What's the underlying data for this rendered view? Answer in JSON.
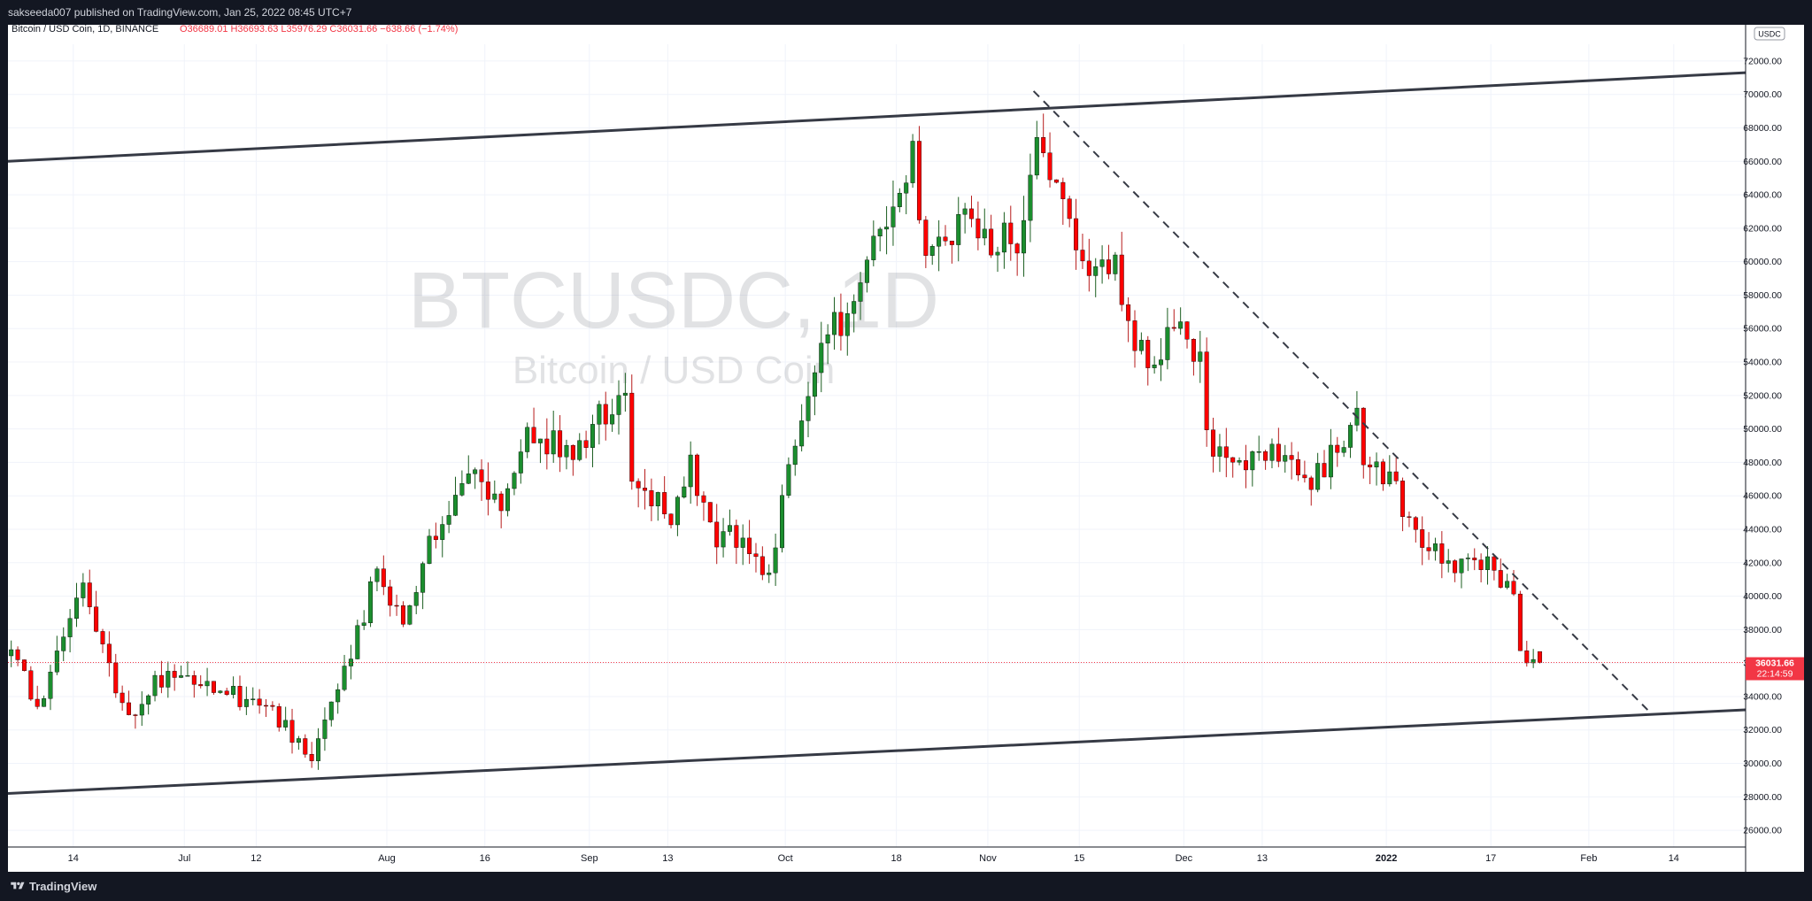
{
  "header": {
    "published": "sakseeda007 published on TradingView.com, Jan 25, 2022 08:45 UTC+7"
  },
  "legend": {
    "symbol": "Bitcoin / USD Coin, 1D, BINANCE",
    "ohlc": "O36689.01 H36693.63 L35976.29 C36031.66 −638.66 (−1.74%)"
  },
  "currency_badge": "USDC",
  "watermark": {
    "line1": "BTCUSDC, 1D",
    "line2": "Bitcoin / USD Coin"
  },
  "price_label": {
    "price": "36031.66",
    "countdown": "22:14:59"
  },
  "footer": {
    "brand": "TradingView"
  },
  "colors": {
    "up": "#089981",
    "up_body": "#1b8e2e",
    "down": "#f23645",
    "down_body": "#ff0000",
    "background": "#ffffff",
    "frame": "#131722",
    "trendline": "#363a45"
  },
  "chart_data": {
    "type": "candlestick",
    "symbol": "BTCUSDC",
    "interval": "1D",
    "exchange": "BINANCE",
    "ylim": [
      25000,
      73000
    ],
    "y_ticks": [
      "72000.00",
      "70000.00",
      "68000.00",
      "66000.00",
      "64000.00",
      "62000.00",
      "60000.00",
      "58000.00",
      "56000.00",
      "54000.00",
      "52000.00",
      "50000.00",
      "48000.00",
      "46000.00",
      "44000.00",
      "42000.00",
      "40000.00",
      "38000.00",
      "36000.00",
      "34000.00",
      "32000.00",
      "30000.00",
      "28000.00",
      "26000.00"
    ],
    "x_start": "2021-06-04",
    "x_end": "2022-02-25",
    "x_ticks": [
      {
        "label": "14",
        "date": "2021-06-14"
      },
      {
        "label": "Jul",
        "date": "2021-07-01"
      },
      {
        "label": "12",
        "date": "2021-07-12"
      },
      {
        "label": "Aug",
        "date": "2021-08-01"
      },
      {
        "label": "16",
        "date": "2021-08-16"
      },
      {
        "label": "Sep",
        "date": "2021-09-01"
      },
      {
        "label": "13",
        "date": "2021-09-13"
      },
      {
        "label": "Oct",
        "date": "2021-10-01"
      },
      {
        "label": "18",
        "date": "2021-10-18"
      },
      {
        "label": "Nov",
        "date": "2021-11-01"
      },
      {
        "label": "15",
        "date": "2021-11-15"
      },
      {
        "label": "Dec",
        "date": "2021-12-01"
      },
      {
        "label": "13",
        "date": "2021-12-13"
      },
      {
        "label": "2022",
        "date": "2022-01-01"
      },
      {
        "label": "17",
        "date": "2022-01-17"
      },
      {
        "label": "Feb",
        "date": "2022-02-01"
      },
      {
        "label": "14",
        "date": "2022-02-14"
      }
    ],
    "last_price": 36031.66,
    "waypoints": [
      {
        "date": "2021-06-04",
        "close": 36800
      },
      {
        "date": "2021-06-08",
        "close": 33500
      },
      {
        "date": "2021-06-12",
        "close": 37400
      },
      {
        "date": "2021-06-15",
        "close": 40200
      },
      {
        "date": "2021-06-19",
        "close": 35800
      },
      {
        "date": "2021-06-22",
        "close": 32400
      },
      {
        "date": "2021-06-26",
        "close": 34800
      },
      {
        "date": "2021-06-30",
        "close": 35100
      },
      {
        "date": "2021-07-05",
        "close": 34400
      },
      {
        "date": "2021-07-10",
        "close": 33800
      },
      {
        "date": "2021-07-15",
        "close": 32600
      },
      {
        "date": "2021-07-20",
        "close": 29900
      },
      {
        "date": "2021-07-25",
        "close": 35300
      },
      {
        "date": "2021-07-30",
        "close": 41400
      },
      {
        "date": "2021-08-03",
        "close": 38200
      },
      {
        "date": "2021-08-07",
        "close": 43500
      },
      {
        "date": "2021-08-14",
        "close": 47200
      },
      {
        "date": "2021-08-18",
        "close": 44800
      },
      {
        "date": "2021-08-22",
        "close": 49400
      },
      {
        "date": "2021-08-29",
        "close": 48800
      },
      {
        "date": "2021-09-06",
        "close": 52600
      },
      {
        "date": "2021-09-07",
        "close": 46900
      },
      {
        "date": "2021-09-13",
        "close": 44900
      },
      {
        "date": "2021-09-16",
        "close": 47800
      },
      {
        "date": "2021-09-20",
        "close": 43000
      },
      {
        "date": "2021-09-22",
        "close": 43600
      },
      {
        "date": "2021-09-28",
        "close": 41100
      },
      {
        "date": "2021-10-01",
        "close": 48000
      },
      {
        "date": "2021-10-06",
        "close": 55300
      },
      {
        "date": "2021-10-11",
        "close": 57400
      },
      {
        "date": "2021-10-15",
        "close": 61700
      },
      {
        "date": "2021-10-20",
        "close": 66100
      },
      {
        "date": "2021-10-22",
        "close": 60700
      },
      {
        "date": "2021-10-28",
        "close": 62300
      },
      {
        "date": "2021-10-31",
        "close": 61300
      },
      {
        "date": "2021-11-05",
        "close": 61400
      },
      {
        "date": "2021-11-08",
        "close": 67500
      },
      {
        "date": "2021-11-10",
        "close": 64900
      },
      {
        "date": "2021-11-16",
        "close": 60100
      },
      {
        "date": "2021-11-20",
        "close": 59700
      },
      {
        "date": "2021-11-22",
        "close": 56300
      },
      {
        "date": "2021-11-26",
        "close": 53700
      },
      {
        "date": "2021-11-30",
        "close": 57000
      },
      {
        "date": "2021-12-03",
        "close": 53700
      },
      {
        "date": "2021-12-04",
        "close": 49200
      },
      {
        "date": "2021-12-09",
        "close": 47600
      },
      {
        "date": "2021-12-14",
        "close": 48300
      },
      {
        "date": "2021-12-20",
        "close": 46700
      },
      {
        "date": "2021-12-27",
        "close": 50700
      },
      {
        "date": "2021-12-28",
        "close": 47500
      },
      {
        "date": "2022-01-01",
        "close": 47300
      },
      {
        "date": "2022-01-05",
        "close": 43400
      },
      {
        "date": "2022-01-10",
        "close": 41800
      },
      {
        "date": "2022-01-13",
        "close": 42500
      },
      {
        "date": "2022-01-20",
        "close": 40600
      },
      {
        "date": "2022-01-21",
        "close": 36400
      },
      {
        "date": "2022-01-23",
        "close": 36300
      },
      {
        "date": "2022-01-24",
        "close": 36031.66
      }
    ],
    "drawings": [
      {
        "type": "trendline",
        "style": "solid",
        "from": {
          "date": "2021-06-04",
          "price": 66000
        },
        "to": {
          "date": "2022-02-25",
          "price": 71300
        }
      },
      {
        "type": "trendline",
        "style": "solid",
        "from": {
          "date": "2021-06-04",
          "price": 28200
        },
        "to": {
          "date": "2022-02-25",
          "price": 33200
        }
      },
      {
        "type": "trendline",
        "style": "dashed",
        "from": {
          "date": "2021-11-08",
          "price": 70200
        },
        "to": {
          "date": "2022-02-10",
          "price": 33200
        }
      }
    ]
  }
}
